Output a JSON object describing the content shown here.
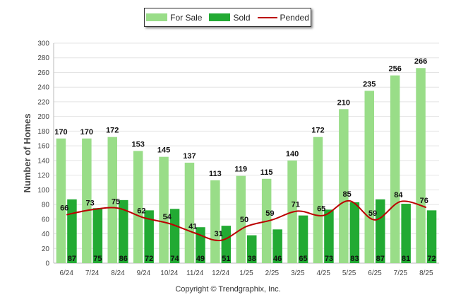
{
  "chart_data": {
    "type": "bar",
    "ylabel": "Number of Homes",
    "ylim": [
      0,
      300
    ],
    "yticks": [
      0,
      20,
      40,
      60,
      80,
      100,
      120,
      140,
      160,
      180,
      200,
      220,
      240,
      260,
      280,
      300
    ],
    "categories": [
      "6/24",
      "7/24",
      "8/24",
      "9/24",
      "10/24",
      "11/24",
      "12/24",
      "1/25",
      "2/25",
      "3/25",
      "4/25",
      "5/25",
      "6/25",
      "7/25",
      "8/25"
    ],
    "series": [
      {
        "name": "For Sale",
        "type": "bar",
        "color": "#99dd88",
        "values": [
          170,
          170,
          172,
          153,
          145,
          137,
          113,
          119,
          115,
          140,
          172,
          210,
          235,
          256,
          266
        ]
      },
      {
        "name": "Sold",
        "type": "bar",
        "color": "#22aa33",
        "values": [
          87,
          75,
          86,
          72,
          74,
          49,
          51,
          38,
          46,
          65,
          73,
          83,
          87,
          81,
          72
        ]
      },
      {
        "name": "Pended",
        "type": "line",
        "color": "#bb0000",
        "values": [
          66,
          73,
          75,
          62,
          54,
          41,
          31,
          50,
          59,
          71,
          65,
          85,
          59,
          84,
          76
        ]
      }
    ],
    "legend_position": "top-center",
    "grid": true
  },
  "footer": {
    "copyright": "Copyright © Trendgraphix, Inc."
  }
}
